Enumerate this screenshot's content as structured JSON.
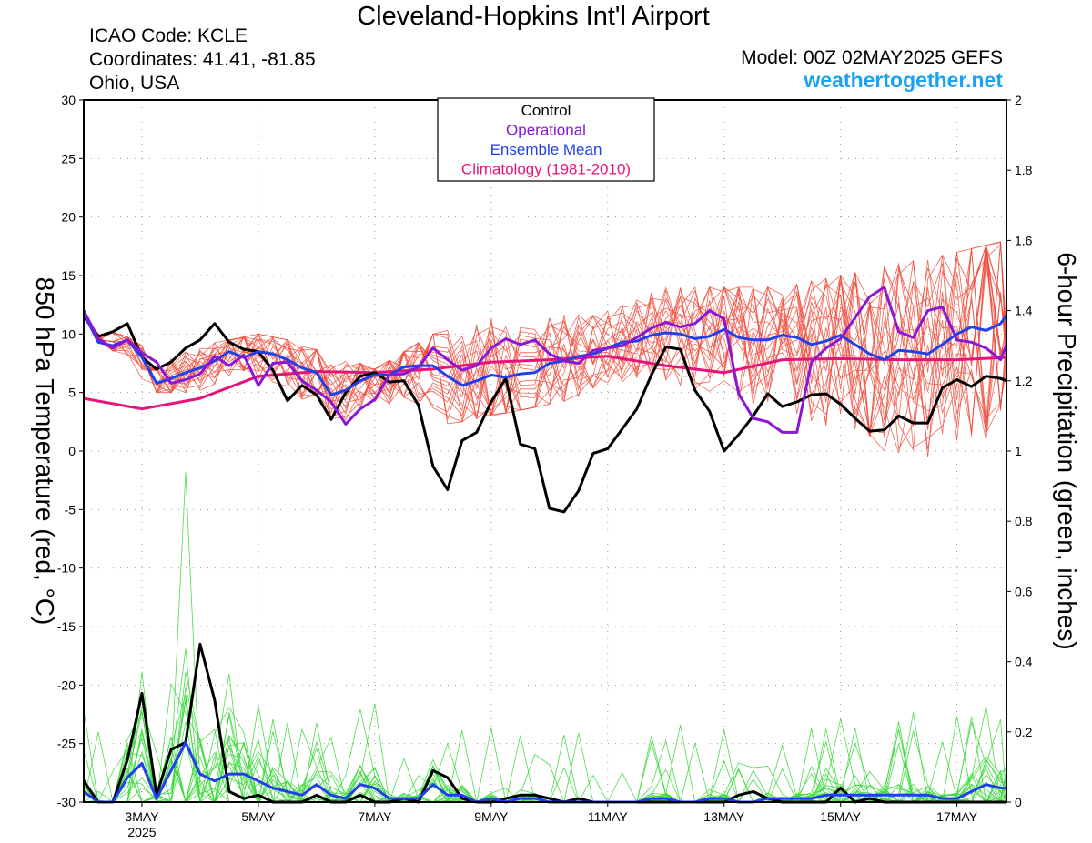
{
  "header": {
    "title": "Cleveland-Hopkins Int'l Airport",
    "icao": "ICAO Code: KCLE",
    "coordinates": "Coordinates: 41.41, -81.85",
    "location": "Ohio, USA",
    "model": "Model: 00Z 02MAY2025 GEFS",
    "site": "weathertogether.net"
  },
  "chart_data": {
    "type": "line",
    "title": "Cleveland-Hopkins Int'l Airport",
    "ylabel": "850 hPa Temperature (red, °C)",
    "y2label": "6-hour Precipitation (green, inches)",
    "ylim": [
      -30,
      30
    ],
    "y2lim": [
      0,
      2
    ],
    "xlim_days": [
      2.0,
      17.85
    ],
    "yticks": [
      30,
      25,
      20,
      15,
      10,
      5,
      0,
      -5,
      -10,
      -15,
      -20,
      -25,
      -30
    ],
    "y2ticks": [
      "2",
      "1.8",
      "1.6",
      "1.4",
      "1.2",
      "1",
      "0.8",
      "0.6",
      "0.4",
      "0.2",
      "0"
    ],
    "xticks": [
      {
        "day": 3,
        "label": "3MAY",
        "sublabel": "2025"
      },
      {
        "day": 5,
        "label": "5MAY"
      },
      {
        "day": 7,
        "label": "7MAY"
      },
      {
        "day": 9,
        "label": "9MAY"
      },
      {
        "day": 11,
        "label": "11MAY"
      },
      {
        "day": 13,
        "label": "13MAY"
      },
      {
        "day": 15,
        "label": "15MAY"
      },
      {
        "day": 17,
        "label": "17MAY"
      }
    ],
    "grid": true,
    "legend": {
      "position": "top-center",
      "entries": [
        {
          "label": "Control",
          "color": "#000000"
        },
        {
          "label": "Operational",
          "color": "#8a17d6"
        },
        {
          "label": "Ensemble Mean",
          "color": "#2040e8"
        },
        {
          "label": "Climatology (1981-2010)",
          "color": "#e8137a"
        }
      ]
    },
    "series": [
      {
        "name": "Climatology (1981-2010)",
        "axis": "temp",
        "color": "#e8137a",
        "x": [
          2.0,
          3.0,
          4.0,
          5.0,
          6.0,
          7.0,
          8.0,
          9.0,
          10.0,
          11.0,
          12.0,
          13.0,
          14.0,
          15.0,
          16.0,
          17.0,
          17.85
        ],
        "y": [
          4.5,
          3.6,
          4.5,
          6.4,
          6.8,
          6.7,
          7.0,
          7.6,
          7.8,
          8.1,
          7.3,
          6.7,
          7.8,
          7.9,
          7.8,
          7.8,
          8.0
        ]
      },
      {
        "name": "Control",
        "axis": "temp",
        "color": "#000000",
        "x": [
          2.0,
          2.25,
          2.5,
          2.75,
          3.0,
          3.25,
          3.5,
          3.75,
          4.0,
          4.25,
          4.5,
          4.75,
          5.0,
          5.25,
          5.5,
          5.75,
          6.0,
          6.25,
          6.5,
          6.75,
          7.0,
          7.25,
          7.5,
          7.75,
          8.0,
          8.25,
          8.5,
          8.75,
          9.0,
          9.25,
          9.5,
          9.75,
          10.0,
          10.25,
          10.5,
          10.75,
          11.0,
          11.25,
          11.5,
          11.75,
          12.0,
          12.25,
          12.5,
          12.75,
          13.0,
          13.25,
          13.5,
          13.75,
          14.0,
          14.25,
          14.5,
          14.75,
          15.0,
          15.25,
          15.5,
          15.75,
          16.0,
          16.25,
          16.5,
          16.75,
          17.0,
          17.25,
          17.5,
          17.75,
          17.85
        ],
        "y": [
          11.5,
          9.8,
          10.2,
          10.9,
          8.0,
          7.0,
          7.6,
          8.8,
          9.5,
          10.9,
          9.3,
          8.7,
          8.5,
          6.9,
          4.3,
          5.6,
          4.8,
          2.7,
          5.0,
          6.4,
          6.7,
          5.9,
          6.0,
          3.9,
          -1.3,
          -3.3,
          0.9,
          1.6,
          4.2,
          6.2,
          0.6,
          0.2,
          -4.9,
          -5.2,
          -3.4,
          -0.2,
          0.2,
          1.9,
          3.6,
          6.5,
          8.9,
          8.7,
          5.2,
          3.4,
          0.0,
          1.4,
          3.0,
          4.9,
          3.8,
          4.2,
          4.8,
          4.9,
          4.0,
          2.8,
          1.7,
          1.8,
          3.0,
          2.4,
          2.4,
          5.4,
          6.1,
          5.5,
          6.4,
          6.2,
          6.0
        ]
      },
      {
        "name": "Operational",
        "axis": "temp",
        "color": "#8a17d6",
        "x": [
          2.0,
          2.25,
          2.5,
          2.75,
          3.0,
          3.25,
          3.5,
          3.75,
          4.0,
          4.25,
          4.5,
          4.75,
          5.0,
          5.25,
          5.5,
          5.75,
          6.0,
          6.25,
          6.5,
          6.75,
          7.0,
          7.25,
          7.5,
          7.75,
          8.0,
          8.25,
          8.5,
          8.75,
          9.0,
          9.25,
          9.5,
          9.75,
          10.0,
          10.25,
          10.5,
          10.75,
          11.0,
          11.25,
          11.5,
          11.75,
          12.0,
          12.25,
          12.5,
          12.75,
          13.0,
          13.25,
          13.5,
          13.75,
          14.0,
          14.25,
          14.5,
          14.75,
          15.0,
          15.25,
          15.5,
          15.75,
          16.0,
          16.25,
          16.5,
          16.75,
          17.0,
          17.25,
          17.5,
          17.75,
          17.85
        ],
        "y": [
          12.0,
          9.6,
          8.8,
          9.5,
          8.4,
          7.6,
          5.8,
          6.1,
          6.6,
          8.1,
          7.3,
          8.2,
          5.6,
          7.5,
          7.6,
          6.0,
          5.2,
          4.2,
          2.3,
          3.6,
          4.4,
          6.5,
          6.6,
          7.2,
          8.8,
          7.8,
          6.9,
          7.3,
          8.8,
          9.6,
          9.1,
          9.5,
          8.3,
          7.7,
          7.5,
          8.6,
          8.8,
          9.0,
          9.7,
          10.5,
          11.0,
          10.6,
          10.9,
          12.0,
          11.3,
          4.9,
          2.8,
          2.5,
          1.6,
          1.6,
          7.6,
          8.8,
          9.6,
          11.4,
          13.2,
          14.0,
          10.2,
          9.7,
          12.0,
          12.3,
          9.5,
          9.3,
          8.8,
          7.8,
          9.1
        ]
      },
      {
        "name": "Ensemble Mean",
        "axis": "temp",
        "color": "#2040e8",
        "x": [
          2.0,
          2.25,
          2.5,
          2.75,
          3.0,
          3.25,
          3.5,
          3.75,
          4.0,
          4.25,
          4.5,
          4.75,
          5.0,
          5.25,
          5.5,
          5.75,
          6.0,
          6.25,
          6.5,
          6.75,
          7.0,
          7.25,
          7.5,
          7.75,
          8.0,
          8.25,
          8.5,
          8.75,
          9.0,
          9.25,
          9.5,
          9.75,
          10.0,
          10.25,
          10.5,
          10.75,
          11.0,
          11.25,
          11.5,
          11.75,
          12.0,
          12.25,
          12.5,
          12.75,
          13.0,
          13.25,
          13.5,
          13.75,
          14.0,
          14.25,
          14.5,
          14.75,
          15.0,
          15.25,
          15.5,
          15.75,
          16.0,
          16.25,
          16.5,
          16.75,
          17.0,
          17.25,
          17.5,
          17.75,
          17.85
        ],
        "y": [
          11.8,
          9.3,
          9.0,
          9.5,
          8.0,
          5.8,
          6.2,
          6.7,
          7.1,
          7.7,
          8.5,
          8.0,
          8.5,
          8.3,
          7.8,
          7.1,
          6.7,
          4.8,
          5.2,
          6.0,
          6.5,
          6.5,
          7.2,
          7.3,
          7.3,
          6.4,
          5.6,
          6.0,
          6.5,
          6.3,
          6.6,
          6.7,
          7.5,
          7.7,
          8.1,
          8.3,
          8.8,
          9.3,
          9.4,
          9.9,
          10.1,
          10.0,
          9.6,
          9.8,
          10.4,
          9.7,
          9.5,
          9.5,
          9.9,
          9.7,
          9.1,
          9.4,
          9.9,
          9.1,
          8.3,
          7.8,
          8.6,
          8.5,
          8.3,
          9.1,
          10.0,
          10.6,
          10.3,
          10.9,
          11.6
        ]
      },
      {
        "name": "Control",
        "axis": "precip",
        "color": "#000000",
        "x": [
          2.0,
          2.25,
          2.5,
          2.75,
          3.0,
          3.25,
          3.5,
          3.75,
          4.0,
          4.25,
          4.5,
          4.75,
          5.0,
          5.25,
          5.5,
          5.75,
          6.0,
          6.25,
          6.5,
          6.75,
          7.0,
          7.25,
          7.5,
          7.75,
          8.0,
          8.25,
          8.5,
          8.75,
          9.0,
          9.25,
          9.5,
          9.75,
          10.0,
          10.25,
          10.5,
          10.75,
          11.0,
          11.25,
          11.5,
          11.75,
          12.0,
          12.25,
          12.5,
          12.75,
          13.0,
          13.25,
          13.5,
          13.75,
          14.0,
          14.25,
          14.5,
          14.75,
          15.0,
          15.25,
          15.5,
          15.75,
          16.0,
          16.25,
          16.5,
          16.75,
          17.0,
          17.25,
          17.5,
          17.75,
          17.85
        ],
        "y": [
          0.06,
          0.0,
          0.0,
          0.12,
          0.31,
          0.02,
          0.15,
          0.17,
          0.45,
          0.29,
          0.03,
          0.01,
          0.02,
          0.0,
          0.0,
          0.0,
          0.02,
          0.0,
          0.0,
          0.02,
          0.0,
          0.0,
          0.01,
          0.0,
          0.09,
          0.07,
          0.01,
          0.0,
          0.0,
          0.01,
          0.02,
          0.02,
          0.01,
          0.0,
          0.01,
          0.0,
          0.0,
          0.0,
          0.0,
          0.0,
          0.0,
          0.0,
          0.0,
          0.0,
          0.0,
          0.02,
          0.03,
          0.01,
          0.0,
          0.0,
          0.0,
          0.0,
          0.04,
          0.0,
          0.01,
          0.0,
          0.0,
          0.0,
          0.0,
          0.0,
          0.0,
          0.0,
          0.0,
          0.0,
          0.0
        ]
      },
      {
        "name": "Ensemble Mean",
        "axis": "precip",
        "color": "#2040e8",
        "x": [
          2.0,
          2.25,
          2.5,
          2.75,
          3.0,
          3.25,
          3.5,
          3.75,
          4.0,
          4.25,
          4.5,
          4.75,
          5.0,
          5.25,
          5.5,
          5.75,
          6.0,
          6.25,
          6.5,
          6.75,
          7.0,
          7.25,
          7.5,
          7.75,
          8.0,
          8.25,
          8.5,
          8.75,
          9.0,
          9.25,
          9.5,
          9.75,
          10.0,
          10.25,
          10.5,
          10.75,
          11.0,
          11.25,
          11.5,
          11.75,
          12.0,
          12.25,
          12.5,
          12.75,
          13.0,
          13.25,
          13.5,
          13.75,
          14.0,
          14.25,
          14.5,
          14.75,
          15.0,
          15.25,
          15.5,
          15.75,
          16.0,
          16.25,
          16.5,
          16.75,
          17.0,
          17.25,
          17.5,
          17.75,
          17.85
        ],
        "y": [
          0.03,
          0.0,
          0.0,
          0.07,
          0.11,
          0.01,
          0.09,
          0.17,
          0.08,
          0.06,
          0.08,
          0.08,
          0.06,
          0.04,
          0.03,
          0.02,
          0.05,
          0.02,
          0.01,
          0.05,
          0.04,
          0.01,
          0.01,
          0.01,
          0.05,
          0.02,
          0.02,
          0.0,
          0.01,
          0.0,
          0.01,
          0.01,
          0.0,
          0.0,
          0.0,
          0.0,
          0.0,
          0.0,
          0.0,
          0.01,
          0.01,
          0.0,
          0.0,
          0.01,
          0.01,
          0.0,
          0.0,
          0.01,
          0.01,
          0.01,
          0.01,
          0.02,
          0.02,
          0.02,
          0.02,
          0.02,
          0.02,
          0.02,
          0.02,
          0.01,
          0.01,
          0.03,
          0.05,
          0.04,
          0.04
        ]
      }
    ],
    "ensemble": {
      "temperature_members": {
        "color": "#f04a3a",
        "count": 20,
        "spread_envelope": {
          "x": [
            2,
            3,
            4,
            5,
            6,
            7,
            8,
            9,
            10,
            11,
            12,
            13,
            14,
            15,
            16,
            17,
            17.85
          ],
          "low": [
            11,
            5,
            5,
            5,
            3,
            2,
            2,
            3,
            4,
            5,
            5,
            3,
            1,
            -1,
            -3,
            -3,
            -2
          ],
          "high": [
            12,
            9,
            9,
            10,
            9,
            7,
            10,
            14,
            13,
            12,
            14,
            14,
            14,
            15,
            16,
            17,
            18
          ]
        }
      },
      "precip_members": {
        "color": "#38d838",
        "count": 20,
        "max_peak": {
          "x": 3.75,
          "y": 0.94
        }
      }
    }
  }
}
